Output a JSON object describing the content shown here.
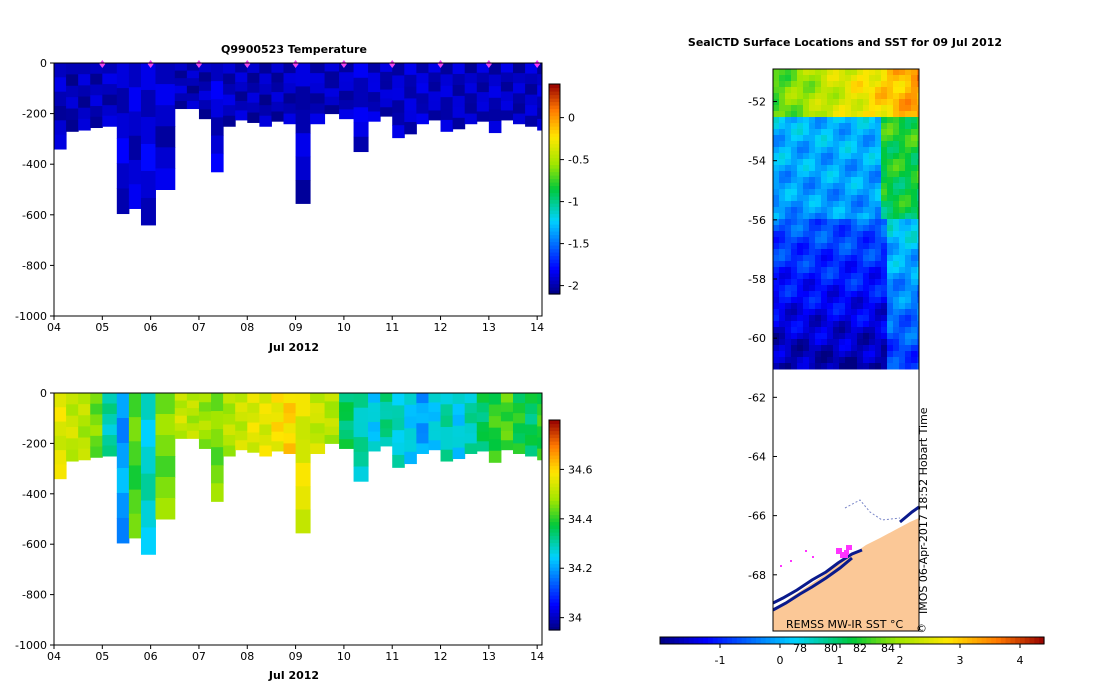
{
  "chart_data": [
    {
      "type": "heatmap",
      "title": "Q9900523  Temperature",
      "xlabel": "Jul 2012",
      "ylabel": "",
      "x_ticks": [
        "04",
        "05",
        "06",
        "07",
        "08",
        "09",
        "10",
        "11",
        "12",
        "13",
        "14"
      ],
      "y_ticks": [
        "0",
        "-200",
        "-400",
        "-600",
        "-800",
        "-1000"
      ],
      "xlim": [
        4,
        14.1
      ],
      "ylim": [
        -1000,
        0
      ],
      "colorbar_ticks": [
        "0",
        "-0.5",
        "-1",
        "-1.5",
        "-2"
      ],
      "colorbar_range": [
        -2.1,
        0.4
      ],
      "surface_markers_days": [
        5.0,
        6.0,
        7.0,
        8.0,
        9.0,
        10.0,
        11.0,
        12.0,
        13.0,
        14.0
      ],
      "profiles": {
        "day_start": [
          4.0,
          4.25,
          4.5,
          4.75,
          5.0,
          5.3,
          5.55,
          5.8,
          6.1,
          6.5,
          6.75,
          7.0,
          7.25,
          7.5,
          7.75,
          8.0,
          8.25,
          8.5,
          8.75,
          9.0,
          9.3,
          9.6,
          9.9,
          10.2,
          10.5,
          10.75,
          11.0,
          11.25,
          11.5,
          11.75,
          12.0,
          12.25,
          12.5,
          12.75,
          13.0,
          13.25,
          13.5,
          13.75,
          14.0
        ],
        "day_end": [
          4.25,
          4.5,
          4.75,
          5.0,
          5.3,
          5.55,
          5.8,
          6.1,
          6.5,
          6.75,
          7.0,
          7.25,
          7.5,
          7.75,
          8.0,
          8.25,
          8.5,
          8.75,
          9.0,
          9.3,
          9.6,
          9.9,
          10.2,
          10.5,
          10.75,
          11.0,
          11.25,
          11.5,
          11.75,
          12.0,
          12.25,
          12.5,
          12.75,
          13.0,
          13.25,
          13.5,
          13.75,
          14.0,
          14.1
        ],
        "max_depth": [
          -340,
          -270,
          -265,
          -255,
          -250,
          -595,
          -575,
          -640,
          -500,
          -180,
          -180,
          -220,
          -430,
          -250,
          -225,
          -235,
          -250,
          -230,
          -240,
          -555,
          -240,
          -200,
          -220,
          -350,
          -230,
          -210,
          -295,
          -280,
          -240,
          -225,
          -270,
          -260,
          -240,
          -230,
          -275,
          -225,
          -240,
          -250,
          -265
        ],
        "temperature_c": [
          -1.95,
          -1.98,
          -1.97,
          -1.96,
          -1.95,
          -1.9,
          -1.92,
          -1.88,
          -1.93,
          -1.96,
          -1.98,
          -1.97,
          -1.9,
          -1.95,
          -1.96,
          -1.97,
          -1.98,
          -1.97,
          -1.96,
          -1.94,
          -1.95,
          -1.96,
          -1.95,
          -1.9,
          -1.93,
          -1.95,
          -1.94,
          -1.93,
          -1.92,
          -1.95,
          -1.94,
          -1.95,
          -1.96,
          -1.95,
          -1.94,
          -1.95,
          -1.96,
          -1.95,
          -1.94
        ],
        "salinity": [
          34.55,
          34.52,
          34.5,
          34.45,
          34.3,
          34.2,
          34.42,
          34.28,
          34.45,
          34.52,
          34.5,
          34.48,
          34.45,
          34.5,
          34.52,
          34.55,
          34.55,
          34.58,
          34.6,
          34.55,
          34.52,
          34.5,
          34.35,
          34.3,
          34.25,
          34.32,
          34.28,
          34.25,
          34.2,
          34.25,
          34.3,
          34.25,
          34.3,
          34.35,
          34.4,
          34.42,
          34.38,
          34.35,
          34.4
        ]
      }
    },
    {
      "type": "heatmap",
      "title": "",
      "xlabel": "Jul 2012",
      "ylabel": "",
      "x_ticks": [
        "04",
        "05",
        "06",
        "07",
        "08",
        "09",
        "10",
        "11",
        "12",
        "13",
        "14"
      ],
      "y_ticks": [
        "0",
        "-200",
        "-400",
        "-600",
        "-800",
        "-1000"
      ],
      "xlim": [
        4,
        14.1
      ],
      "ylim": [
        -1000,
        0
      ],
      "colorbar_ticks": [
        "34.6",
        "34.4",
        "34.2",
        "34"
      ],
      "colorbar_range": [
        33.95,
        34.8
      ]
    },
    {
      "type": "heatmap",
      "title": "SealCTD Surface Locations and SST for 09 Jul 2012",
      "xlabel": "",
      "ylabel": "",
      "lat_ticks": [
        "-52",
        "-54",
        "-56",
        "-58",
        "-60",
        "-62",
        "-64",
        "-66",
        "-68"
      ],
      "lat_range": [
        -69.9,
        -50.9
      ],
      "colorbar_ticks": [
        "-1",
        "0",
        "1",
        "2",
        "3",
        "4"
      ],
      "colorbar_range": [
        -2.0,
        4.4
      ],
      "colorbar_overlay_ticks": [
        "78",
        "80",
        "82",
        "84"
      ],
      "annotation": "REMSS MW-IR SST °C",
      "side_label": "IMOS 06-Apr-2017 18:52 Hobart Time",
      "copyright_symbol": "©",
      "grid": false
    }
  ]
}
